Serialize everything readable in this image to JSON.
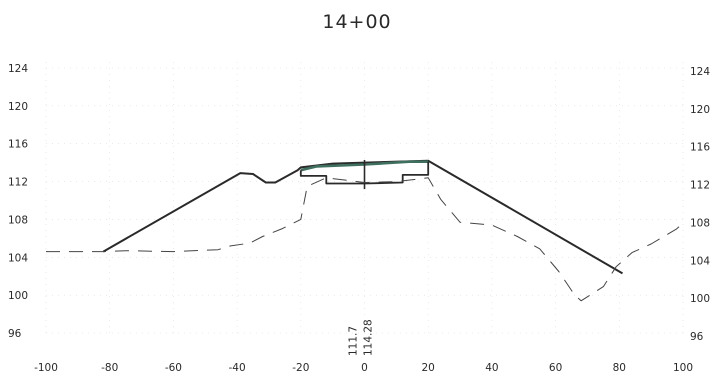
{
  "title": "14+00",
  "x_ticks": [
    "-100",
    "-80",
    "-60",
    "-40",
    "-20",
    "0",
    "20",
    "40",
    "60",
    "80",
    "100"
  ],
  "y_ticks": [
    "124",
    "120",
    "116",
    "112",
    "108",
    "104",
    "100",
    "96"
  ],
  "annotations": {
    "left": "111.7",
    "right": "114.28"
  },
  "colors": {
    "design": "#2a2a2a",
    "subgrade": "#3f6f5e",
    "ground": "#444444"
  },
  "chart_data": {
    "type": "line",
    "title": "14+00",
    "xlim": [
      -100,
      100
    ],
    "ylim": [
      96,
      124
    ],
    "x_ticks": [
      -100,
      -80,
      -60,
      -40,
      -20,
      0,
      20,
      40,
      60,
      80,
      100
    ],
    "y_ticks": [
      96,
      100,
      104,
      108,
      112,
      116,
      120,
      124
    ],
    "grid": true,
    "series": [
      {
        "style": "solid",
        "x": [
          -82,
          -39,
          -35,
          -31,
          -28,
          -21,
          -20,
          -10,
          0,
          20,
          81
        ],
        "y": [
          104.6,
          112.9,
          112.8,
          111.9,
          111.9,
          113.2,
          113.5,
          113.9,
          114.0,
          114.2,
          102.3
        ]
      },
      {
        "style": "solid",
        "x": [
          -20,
          -15,
          0,
          14,
          20
        ],
        "y": [
          113.2,
          113.6,
          113.8,
          114.1,
          114.1
        ]
      },
      {
        "style": "solid",
        "x": [
          -20,
          -20,
          -12,
          -12,
          0,
          12,
          12,
          20,
          20
        ],
        "y": [
          113.2,
          112.6,
          112.6,
          111.8,
          111.8,
          111.9,
          112.7,
          112.7,
          114.1
        ]
      },
      {
        "style": "solid",
        "x": [
          0,
          0
        ],
        "y": [
          114.28,
          111.2
        ]
      },
      {
        "style": "dashed",
        "x": [
          -100,
          -82,
          -75,
          -60,
          -46,
          -42,
          -36,
          -32,
          -26,
          -20,
          -18,
          -12,
          0,
          10,
          20,
          24,
          30,
          40,
          48,
          55,
          61,
          66,
          68,
          75,
          79,
          84,
          90,
          98,
          100
        ],
        "y": [
          104.6,
          104.6,
          104.7,
          104.6,
          104.8,
          105.2,
          105.5,
          106.2,
          107.0,
          108.0,
          111.5,
          112.4,
          111.9,
          112.0,
          112.4,
          110.1,
          107.7,
          107.4,
          106.2,
          104.9,
          102.5,
          100.0,
          99.4,
          100.9,
          103.0,
          104.5,
          105.4,
          107.0,
          107.6
        ]
      }
    ],
    "annotations": [
      {
        "text": "111.7",
        "x": 0,
        "orientation": "vertical"
      },
      {
        "text": "114.28",
        "x": 0,
        "orientation": "vertical"
      }
    ]
  }
}
